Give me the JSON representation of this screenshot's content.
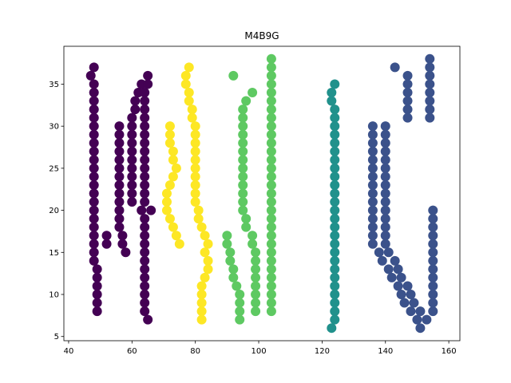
{
  "chart_data": {
    "type": "scatter",
    "title": "M4B9G",
    "xlabel": "",
    "ylabel": "",
    "xlim": [
      38.5,
      163.5
    ],
    "ylim": [
      4.5,
      39.5
    ],
    "xticks": [
      40,
      60,
      80,
      100,
      120,
      140,
      160
    ],
    "yticks": [
      5,
      10,
      15,
      20,
      25,
      30,
      35
    ],
    "grid": false,
    "legend": "none",
    "series": [
      {
        "color": "#440154",
        "points": [
          [
            48,
            37
          ],
          [
            47,
            36
          ],
          [
            65,
            36
          ],
          [
            48,
            35
          ],
          [
            63,
            35
          ],
          [
            65,
            35
          ],
          [
            48,
            34
          ],
          [
            62,
            34
          ],
          [
            64,
            34
          ],
          [
            48,
            33
          ],
          [
            61,
            33
          ],
          [
            64,
            33
          ],
          [
            48,
            32
          ],
          [
            61,
            32
          ],
          [
            64,
            32
          ],
          [
            48,
            31
          ],
          [
            60,
            31
          ],
          [
            64,
            31
          ],
          [
            48,
            30
          ],
          [
            56,
            30
          ],
          [
            60,
            30
          ],
          [
            64,
            30
          ],
          [
            48,
            29
          ],
          [
            56,
            29
          ],
          [
            60,
            29
          ],
          [
            64,
            29
          ],
          [
            48,
            28
          ],
          [
            56,
            28
          ],
          [
            60,
            28
          ],
          [
            64,
            28
          ],
          [
            48,
            27
          ],
          [
            56,
            27
          ],
          [
            60,
            27
          ],
          [
            64,
            27
          ],
          [
            48,
            26
          ],
          [
            56,
            26
          ],
          [
            60,
            26
          ],
          [
            64,
            26
          ],
          [
            48,
            25
          ],
          [
            56,
            25
          ],
          [
            60,
            25
          ],
          [
            64,
            25
          ],
          [
            48,
            24
          ],
          [
            56,
            24
          ],
          [
            60,
            24
          ],
          [
            64,
            24
          ],
          [
            48,
            23
          ],
          [
            56,
            23
          ],
          [
            60,
            23
          ],
          [
            64,
            23
          ],
          [
            48,
            22
          ],
          [
            56,
            22
          ],
          [
            60,
            22
          ],
          [
            64,
            22
          ],
          [
            48,
            21
          ],
          [
            56,
            21
          ],
          [
            60,
            21
          ],
          [
            64,
            21
          ],
          [
            48,
            20
          ],
          [
            56,
            20
          ],
          [
            63,
            20
          ],
          [
            66,
            20
          ],
          [
            48,
            19
          ],
          [
            56,
            19
          ],
          [
            64,
            19
          ],
          [
            48,
            18
          ],
          [
            56,
            18
          ],
          [
            64,
            18
          ],
          [
            48,
            17
          ],
          [
            52,
            17
          ],
          [
            57,
            17
          ],
          [
            64,
            17
          ],
          [
            48,
            16
          ],
          [
            52,
            16
          ],
          [
            57,
            16
          ],
          [
            64,
            16
          ],
          [
            48,
            15
          ],
          [
            58,
            15
          ],
          [
            64,
            15
          ],
          [
            48,
            14
          ],
          [
            64,
            14
          ],
          [
            49,
            13
          ],
          [
            64,
            13
          ],
          [
            49,
            12
          ],
          [
            64,
            12
          ],
          [
            49,
            11
          ],
          [
            64,
            11
          ],
          [
            49,
            10
          ],
          [
            64,
            10
          ],
          [
            49,
            9
          ],
          [
            64,
            9
          ],
          [
            49,
            8
          ],
          [
            64,
            8
          ],
          [
            65,
            7
          ]
        ]
      },
      {
        "color": "#fde725",
        "points": [
          [
            78,
            37
          ],
          [
            77,
            36
          ],
          [
            77,
            35
          ],
          [
            78,
            34
          ],
          [
            78,
            33
          ],
          [
            79,
            32
          ],
          [
            79,
            31
          ],
          [
            72,
            30
          ],
          [
            80,
            30
          ],
          [
            72,
            29
          ],
          [
            80,
            29
          ],
          [
            72,
            28
          ],
          [
            80,
            28
          ],
          [
            73,
            27
          ],
          [
            80,
            27
          ],
          [
            73,
            26
          ],
          [
            80,
            26
          ],
          [
            74,
            25
          ],
          [
            80,
            25
          ],
          [
            73,
            24
          ],
          [
            80,
            24
          ],
          [
            72,
            23
          ],
          [
            80,
            23
          ],
          [
            71,
            22
          ],
          [
            80,
            22
          ],
          [
            71,
            21
          ],
          [
            80,
            21
          ],
          [
            71,
            20
          ],
          [
            81,
            20
          ],
          [
            72,
            19
          ],
          [
            81,
            19
          ],
          [
            73,
            18
          ],
          [
            82,
            18
          ],
          [
            74,
            17
          ],
          [
            83,
            17
          ],
          [
            75,
            16
          ],
          [
            84,
            16
          ],
          [
            83,
            15
          ],
          [
            84,
            14
          ],
          [
            84,
            13
          ],
          [
            83,
            12
          ],
          [
            82,
            11
          ],
          [
            82,
            10
          ],
          [
            82,
            9
          ],
          [
            82,
            8
          ],
          [
            82,
            7
          ]
        ]
      },
      {
        "color": "#5ec962",
        "points": [
          [
            104,
            38
          ],
          [
            104,
            37
          ],
          [
            92,
            36
          ],
          [
            104,
            36
          ],
          [
            104,
            35
          ],
          [
            98,
            34
          ],
          [
            104,
            34
          ],
          [
            96,
            33
          ],
          [
            104,
            33
          ],
          [
            95,
            32
          ],
          [
            104,
            32
          ],
          [
            95,
            31
          ],
          [
            104,
            31
          ],
          [
            95,
            30
          ],
          [
            104,
            30
          ],
          [
            95,
            29
          ],
          [
            104,
            29
          ],
          [
            95,
            28
          ],
          [
            104,
            28
          ],
          [
            95,
            27
          ],
          [
            104,
            27
          ],
          [
            95,
            26
          ],
          [
            104,
            26
          ],
          [
            95,
            25
          ],
          [
            104,
            25
          ],
          [
            95,
            24
          ],
          [
            104,
            24
          ],
          [
            95,
            23
          ],
          [
            104,
            23
          ],
          [
            95,
            22
          ],
          [
            104,
            22
          ],
          [
            95,
            21
          ],
          [
            104,
            21
          ],
          [
            95,
            20
          ],
          [
            104,
            20
          ],
          [
            96,
            19
          ],
          [
            104,
            19
          ],
          [
            96,
            18
          ],
          [
            104,
            18
          ],
          [
            90,
            17
          ],
          [
            98,
            17
          ],
          [
            104,
            17
          ],
          [
            90,
            16
          ],
          [
            98,
            16
          ],
          [
            104,
            16
          ],
          [
            91,
            15
          ],
          [
            99,
            15
          ],
          [
            104,
            15
          ],
          [
            91,
            14
          ],
          [
            99,
            14
          ],
          [
            104,
            14
          ],
          [
            92,
            13
          ],
          [
            99,
            13
          ],
          [
            104,
            13
          ],
          [
            92,
            12
          ],
          [
            99,
            12
          ],
          [
            104,
            12
          ],
          [
            93,
            11
          ],
          [
            99,
            11
          ],
          [
            104,
            11
          ],
          [
            94,
            10
          ],
          [
            99,
            10
          ],
          [
            104,
            10
          ],
          [
            94,
            9
          ],
          [
            99,
            9
          ],
          [
            104,
            9
          ],
          [
            94,
            8
          ],
          [
            99,
            8
          ],
          [
            104,
            8
          ],
          [
            94,
            7
          ]
        ]
      },
      {
        "color": "#21918c",
        "points": [
          [
            124,
            35
          ],
          [
            123,
            34
          ],
          [
            123,
            33
          ],
          [
            124,
            32
          ],
          [
            124,
            31
          ],
          [
            124,
            30
          ],
          [
            124,
            29
          ],
          [
            124,
            28
          ],
          [
            124,
            27
          ],
          [
            124,
            26
          ],
          [
            124,
            25
          ],
          [
            124,
            24
          ],
          [
            124,
            23
          ],
          [
            124,
            22
          ],
          [
            124,
            21
          ],
          [
            124,
            20
          ],
          [
            124,
            19
          ],
          [
            124,
            18
          ],
          [
            124,
            17
          ],
          [
            124,
            16
          ],
          [
            124,
            15
          ],
          [
            124,
            14
          ],
          [
            124,
            13
          ],
          [
            124,
            12
          ],
          [
            124,
            11
          ],
          [
            124,
            10
          ],
          [
            124,
            9
          ],
          [
            124,
            8
          ],
          [
            124,
            7
          ],
          [
            123,
            6
          ]
        ]
      },
      {
        "color": "#3b528b",
        "points": [
          [
            154,
            38
          ],
          [
            143,
            37
          ],
          [
            154,
            37
          ],
          [
            147,
            36
          ],
          [
            154,
            36
          ],
          [
            147,
            35
          ],
          [
            154,
            35
          ],
          [
            147,
            34
          ],
          [
            154,
            34
          ],
          [
            147,
            33
          ],
          [
            154,
            33
          ],
          [
            147,
            32
          ],
          [
            154,
            32
          ],
          [
            147,
            31
          ],
          [
            154,
            31
          ],
          [
            136,
            30
          ],
          [
            140,
            30
          ],
          [
            136,
            29
          ],
          [
            140,
            29
          ],
          [
            136,
            28
          ],
          [
            140,
            28
          ],
          [
            136,
            27
          ],
          [
            140,
            27
          ],
          [
            136,
            26
          ],
          [
            140,
            26
          ],
          [
            136,
            25
          ],
          [
            140,
            25
          ],
          [
            136,
            24
          ],
          [
            140,
            24
          ],
          [
            136,
            23
          ],
          [
            140,
            23
          ],
          [
            136,
            22
          ],
          [
            140,
            22
          ],
          [
            136,
            21
          ],
          [
            140,
            21
          ],
          [
            136,
            20
          ],
          [
            140,
            20
          ],
          [
            155,
            20
          ],
          [
            136,
            19
          ],
          [
            140,
            19
          ],
          [
            155,
            19
          ],
          [
            136,
            18
          ],
          [
            140,
            18
          ],
          [
            155,
            18
          ],
          [
            136,
            17
          ],
          [
            140,
            17
          ],
          [
            155,
            17
          ],
          [
            136,
            16
          ],
          [
            140,
            16
          ],
          [
            155,
            16
          ],
          [
            138,
            15
          ],
          [
            141,
            15
          ],
          [
            155,
            15
          ],
          [
            139,
            14
          ],
          [
            143,
            14
          ],
          [
            155,
            14
          ],
          [
            141,
            13
          ],
          [
            144,
            13
          ],
          [
            155,
            13
          ],
          [
            142,
            12
          ],
          [
            145,
            12
          ],
          [
            155,
            12
          ],
          [
            144,
            11
          ],
          [
            147,
            11
          ],
          [
            155,
            11
          ],
          [
            145,
            10
          ],
          [
            148,
            10
          ],
          [
            155,
            10
          ],
          [
            146,
            9
          ],
          [
            149,
            9
          ],
          [
            155,
            9
          ],
          [
            148,
            8
          ],
          [
            151,
            8
          ],
          [
            155,
            8
          ],
          [
            150,
            7
          ],
          [
            153,
            7
          ],
          [
            151,
            6
          ]
        ]
      }
    ]
  }
}
